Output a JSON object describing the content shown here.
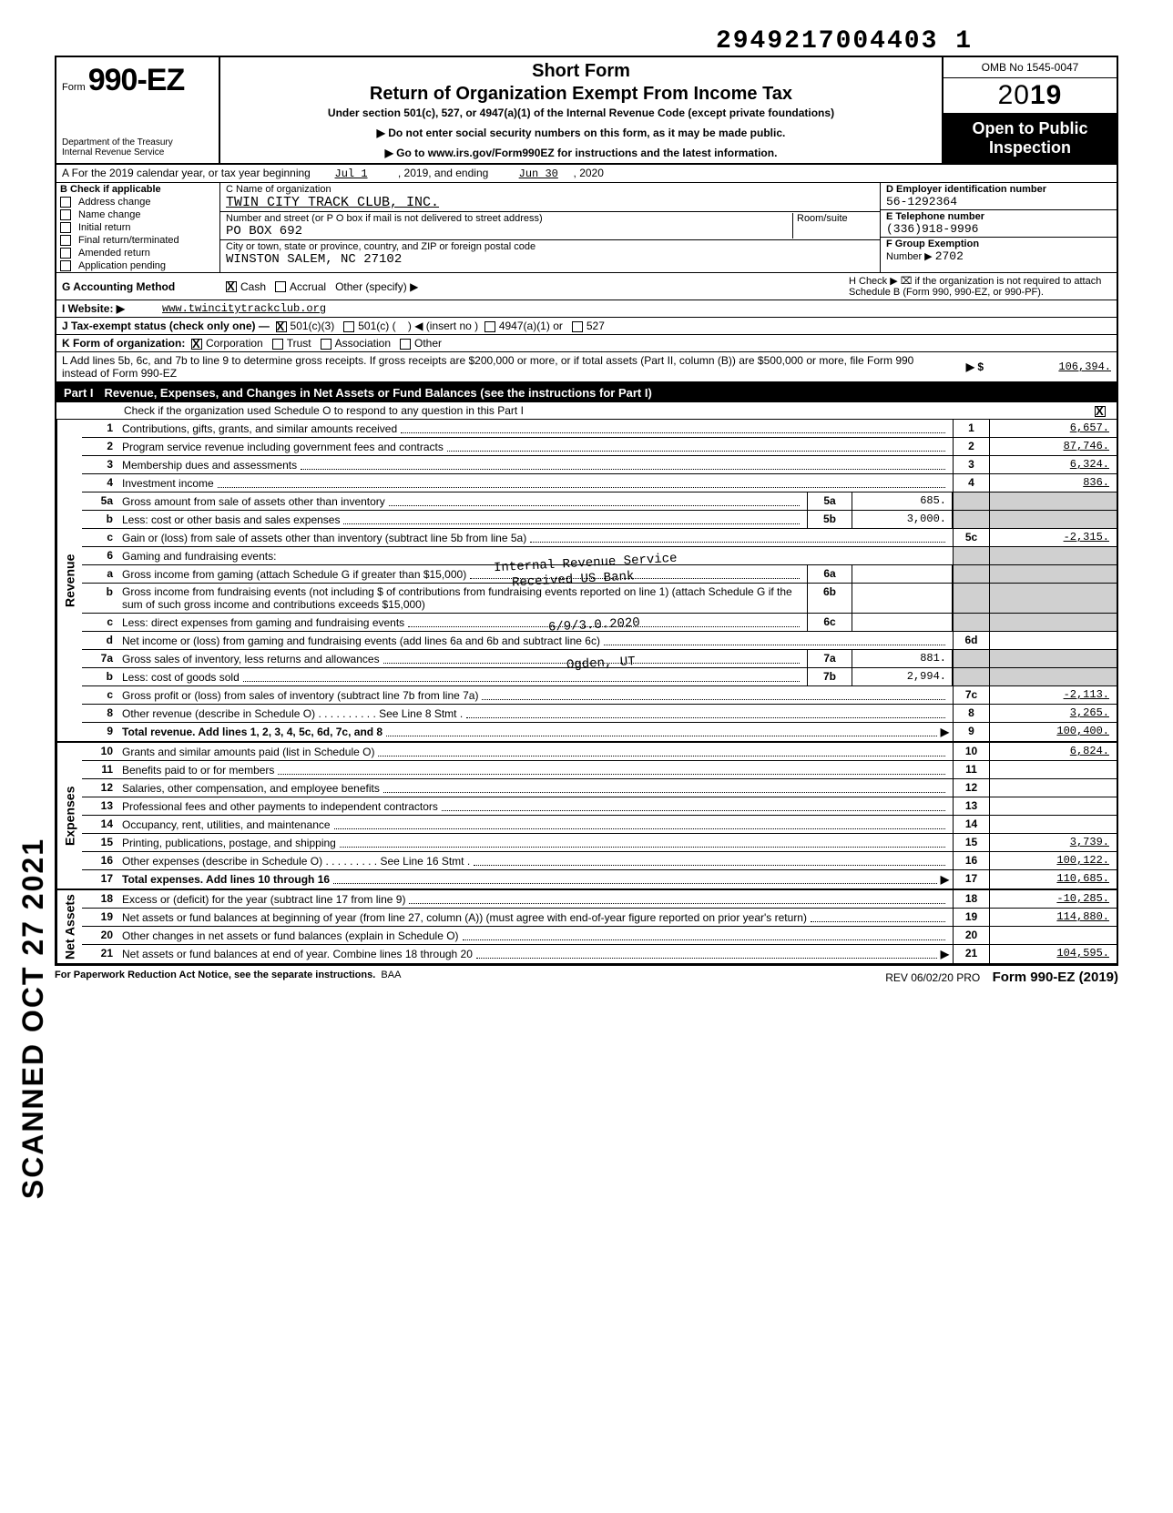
{
  "top_number": "2949217004403  1",
  "header": {
    "form_prefix": "Form",
    "form_no": "990-EZ",
    "dept1": "Department of the Treasury",
    "dept2": "Internal Revenue Service",
    "short": "Short Form",
    "title": "Return of Organization Exempt From Income Tax",
    "sub": "Under section 501(c), 527, or 4947(a)(1) of the Internal Revenue Code (except private foundations)",
    "note1": "▶ Do not enter social security numbers on this form, as it may be made public.",
    "note2": "▶ Go to www.irs.gov/Form990EZ for instructions and the latest information.",
    "omb": "OMB No 1545-0047",
    "year_prefix": "20",
    "year_bold": "19",
    "open1": "Open to Public",
    "open2": "Inspection"
  },
  "rowA": {
    "label": "A For the 2019 calendar year, or tax year beginning",
    "begin": "Jul 1",
    "mid": ", 2019, and ending",
    "end": "Jun 30",
    "endyr": ", 2020"
  },
  "B": {
    "head": "B Check if applicable",
    "items": [
      "Address change",
      "Name change",
      "Initial return",
      "Final return/terminated",
      "Amended return",
      "Application pending"
    ]
  },
  "C": {
    "c_label": "C Name of organization",
    "c_val": "TWIN CITY TRACK CLUB, INC.",
    "addr_label": "Number and street (or P O  box if mail is not delivered to street address)",
    "room": "Room/suite",
    "addr_val": "PO BOX 692",
    "city_label": "City or town, state or province, country, and ZIP or foreign postal code",
    "city_val": "WINSTON SALEM, NC 27102"
  },
  "D": {
    "label": "D Employer identification number",
    "val": "56-1292364"
  },
  "E": {
    "label": "E Telephone number",
    "val": "(336)918-9996"
  },
  "F": {
    "label": "F Group Exemption",
    "label2": "Number ▶",
    "val": "2702"
  },
  "G": {
    "label": "G Accounting Method",
    "cash": "Cash",
    "accrual": "Accrual",
    "other": "Other (specify) ▶"
  },
  "H": {
    "text": "H Check ▶ ⌧ if the organization is not required to attach Schedule B (Form 990, 990-EZ, or 990-PF)."
  },
  "I": {
    "label": "I Website: ▶",
    "val": "www.twincitytrackclub.org"
  },
  "J": {
    "label": "J Tax-exempt status (check only one) —",
    "o1": "501(c)(3)",
    "o2": "501(c) (",
    "o2b": ") ◀ (insert no )",
    "o3": "4947(a)(1) or",
    "o4": "527"
  },
  "K": {
    "label": "K Form of organization:",
    "o1": "Corporation",
    "o2": "Trust",
    "o3": "Association",
    "o4": "Other"
  },
  "L": {
    "text": "L Add lines 5b, 6c, and 7b to line 9 to determine gross receipts. If gross receipts are $200,000 or more, or if total assets (Part II, column (B)) are $500,000 or more, file Form 990 instead of Form 990-EZ",
    "arrow": "▶  $",
    "val": "106,394."
  },
  "part1": {
    "label": "Part I",
    "title": "Revenue, Expenses, and Changes in Net Assets or Fund Balances (see the instructions for Part I)",
    "check": "Check if the organization used Schedule O to respond to any question in this Part I"
  },
  "sections": {
    "revenue": "Revenue",
    "expenses": "Expenses",
    "netassets": "Net Assets"
  },
  "lines": {
    "l1": {
      "n": "1",
      "d": "Contributions, gifts, grants, and similar amounts received",
      "box": "1",
      "v": "6,657."
    },
    "l2": {
      "n": "2",
      "d": "Program service revenue including government fees and contracts",
      "box": "2",
      "v": "87,746."
    },
    "l3": {
      "n": "3",
      "d": "Membership dues and assessments",
      "box": "3",
      "v": "6,324."
    },
    "l4": {
      "n": "4",
      "d": "Investment income",
      "box": "4",
      "v": "836."
    },
    "l5a": {
      "n": "5a",
      "d": "Gross amount from sale of assets other than inventory",
      "mb": "5a",
      "mv": "685."
    },
    "l5b": {
      "n": "b",
      "d": "Less: cost or other basis and sales expenses",
      "mb": "5b",
      "mv": "3,000."
    },
    "l5c": {
      "n": "c",
      "d": "Gain or (loss) from sale of assets other than inventory (subtract line 5b from line 5a)",
      "box": "5c",
      "v": "-2,315."
    },
    "l6": {
      "n": "6",
      "d": "Gaming and fundraising events:"
    },
    "l6a": {
      "n": "a",
      "d": "Gross income from gaming (attach Schedule G if greater than $15,000)",
      "mb": "6a",
      "mv": ""
    },
    "l6b": {
      "n": "b",
      "d": "Gross income from fundraising events (not including  $                     of contributions from fundraising events reported on line 1) (attach Schedule G if the sum of such gross income and contributions exceeds $15,000)",
      "mb": "6b",
      "mv": ""
    },
    "l6c": {
      "n": "c",
      "d": "Less: direct expenses from gaming and fundraising events",
      "mb": "6c",
      "mv": ""
    },
    "l6d": {
      "n": "d",
      "d": "Net income or (loss) from gaming and fundraising events (add lines 6a and 6b and subtract line 6c)",
      "box": "6d",
      "v": ""
    },
    "l7a": {
      "n": "7a",
      "d": "Gross sales of inventory, less returns and allowances",
      "mb": "7a",
      "mv": "881."
    },
    "l7b": {
      "n": "b",
      "d": "Less: cost of goods sold",
      "mb": "7b",
      "mv": "2,994."
    },
    "l7c": {
      "n": "c",
      "d": "Gross profit or (loss) from sales of inventory (subtract line 7b from line 7a)",
      "box": "7c",
      "v": "-2,113."
    },
    "l8": {
      "n": "8",
      "d": "Other revenue (describe in Schedule O) . . . . . . . . . . See Line 8 Stmt .",
      "box": "8",
      "v": "3,265."
    },
    "l9": {
      "n": "9",
      "d": "Total revenue. Add lines 1, 2, 3, 4, 5c, 6d, 7c, and 8",
      "arrow": "▶",
      "box": "9",
      "v": "100,400.",
      "bold": true
    },
    "l10": {
      "n": "10",
      "d": "Grants and similar amounts paid (list in Schedule O)",
      "box": "10",
      "v": "6,824."
    },
    "l11": {
      "n": "11",
      "d": "Benefits paid to or for members",
      "box": "11",
      "v": ""
    },
    "l12": {
      "n": "12",
      "d": "Salaries, other compensation, and employee benefits",
      "box": "12",
      "v": ""
    },
    "l13": {
      "n": "13",
      "d": "Professional fees and other payments to independent contractors",
      "box": "13",
      "v": ""
    },
    "l14": {
      "n": "14",
      "d": "Occupancy, rent, utilities, and maintenance",
      "box": "14",
      "v": ""
    },
    "l15": {
      "n": "15",
      "d": "Printing, publications, postage, and shipping",
      "box": "15",
      "v": "3,739."
    },
    "l16": {
      "n": "16",
      "d": "Other expenses (describe in Schedule O) . . . . . . . . . See Line 16 Stmt .",
      "box": "16",
      "v": "100,122."
    },
    "l17": {
      "n": "17",
      "d": "Total expenses. Add lines 10 through 16",
      "arrow": "▶",
      "box": "17",
      "v": "110,685.",
      "bold": true
    },
    "l18": {
      "n": "18",
      "d": "Excess or (deficit) for the year (subtract line 17 from line 9)",
      "box": "18",
      "v": "-10,285."
    },
    "l19": {
      "n": "19",
      "d": "Net assets or fund balances at beginning of year (from line 27, column (A)) (must agree with end-of-year figure reported on prior year's return)",
      "box": "19",
      "v": "114,880."
    },
    "l20": {
      "n": "20",
      "d": "Other changes in net assets or fund balances (explain in Schedule O)",
      "box": "20",
      "v": ""
    },
    "l21": {
      "n": "21",
      "d": "Net assets or fund balances at end of year. Combine lines 18 through 20",
      "arrow": "▶",
      "box": "21",
      "v": "104,595."
    }
  },
  "stamps": {
    "s1": "Internal Revenue Service",
    "s2": "Received US Bank",
    "s3": "6/9/3.0.2020",
    "s4": "Ogden, UT"
  },
  "scanned": "SCANNED OCT 27 2021",
  "foot": {
    "left": "For Paperwork Reduction Act Notice, see the separate instructions.",
    "baa": "BAA",
    "rev": "REV 06/02/20 PRO",
    "form": "Form 990-EZ (2019)"
  }
}
